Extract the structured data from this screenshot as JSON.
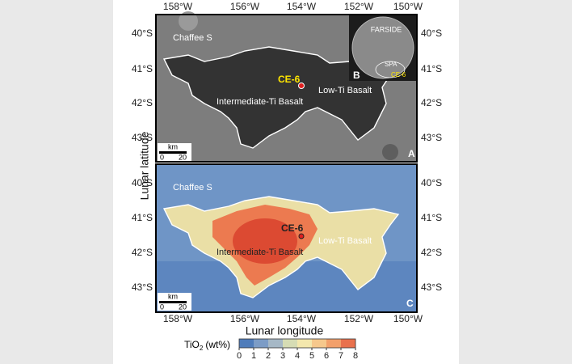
{
  "axes": {
    "y_label": "Lunar latitude",
    "x_label": "Lunar longitude",
    "lon_labels": [
      "158°W",
      "156°W",
      "154°W",
      "152°W",
      "150°W"
    ],
    "lat_labels": [
      "40°S",
      "41°S",
      "42°S",
      "43°S"
    ]
  },
  "panel_a": {
    "letter": "A",
    "chaffee": "Chaffee S",
    "site": "CE-6",
    "inter_ti": "Intermediate-Ti Basalt",
    "low_ti": "Low-Ti Basalt",
    "scale_unit": "km",
    "scale_start": "0",
    "scale_end": "20"
  },
  "inset_b": {
    "letter": "B",
    "farside": "FARSIDE",
    "spa": "SPA",
    "site": "CE-6"
  },
  "panel_c": {
    "letter": "C",
    "chaffee": "Chaffee S",
    "site": "CE-6",
    "inter_ti": "Intermediate-Ti Basalt",
    "low_ti": "Low-Ti Basalt",
    "scale_unit": "km",
    "scale_start": "0",
    "scale_end": "20"
  },
  "colorbar": {
    "label_main": "TiO",
    "label_sub": "2",
    "label_unit": "(wt%)",
    "ticks": [
      0,
      1,
      2,
      3,
      4,
      5,
      6,
      7,
      8
    ],
    "colors": [
      "#4f7cba",
      "#7c9cc6",
      "#a6b8c6",
      "#d6dcb4",
      "#f3e7ad",
      "#f6c88c",
      "#f2a06b",
      "#e9714d",
      "#d8402e"
    ]
  }
}
